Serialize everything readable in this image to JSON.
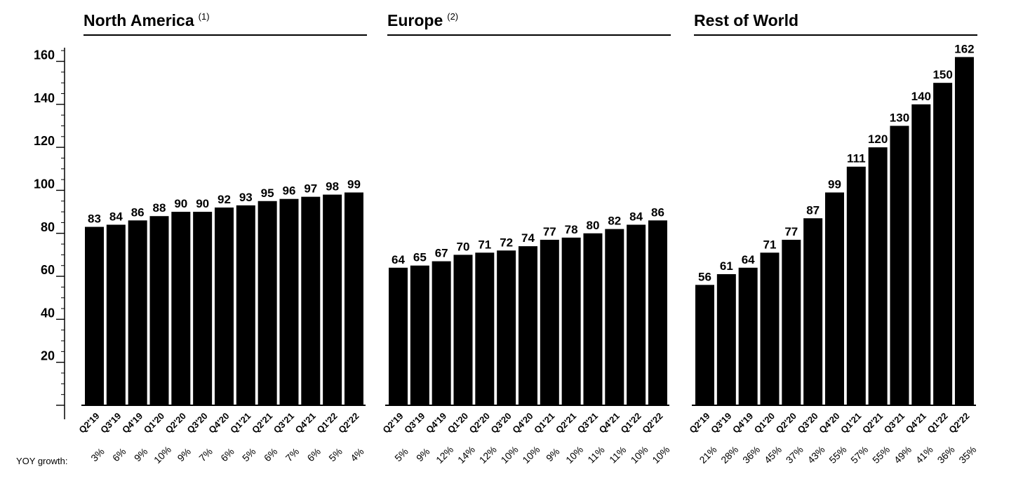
{
  "chart_data": {
    "type": "bar",
    "ylim": [
      0,
      170
    ],
    "yticks": [
      "20",
      "40",
      "60",
      "80",
      "100",
      "120",
      "140",
      "160"
    ],
    "categories": [
      "Q2'19",
      "Q3'19",
      "Q4'19",
      "Q1'20",
      "Q2'20",
      "Q3'20",
      "Q4'20",
      "Q1'21",
      "Q2'21",
      "Q3'21",
      "Q4'21",
      "Q1'22",
      "Q2'22"
    ],
    "growth_label": "YOY growth:",
    "panels": [
      {
        "title": "North America",
        "footnote": "(1)",
        "values": [
          83,
          84,
          86,
          88,
          90,
          90,
          92,
          93,
          95,
          96,
          97,
          98,
          99
        ],
        "growth": [
          "3%",
          "6%",
          "9%",
          "10%",
          "9%",
          "7%",
          "6%",
          "5%",
          "6%",
          "7%",
          "6%",
          "5%",
          "4%"
        ]
      },
      {
        "title": "Europe",
        "footnote": "(2)",
        "values": [
          64,
          65,
          67,
          70,
          71,
          72,
          74,
          77,
          78,
          80,
          82,
          84,
          86
        ],
        "growth": [
          "5%",
          "9%",
          "12%",
          "14%",
          "12%",
          "10%",
          "10%",
          "9%",
          "10%",
          "11%",
          "11%",
          "10%",
          "10%"
        ]
      },
      {
        "title": "Rest of World",
        "footnote": "",
        "values": [
          56,
          61,
          64,
          71,
          77,
          87,
          99,
          111,
          120,
          130,
          140,
          150,
          162
        ],
        "growth": [
          "21%",
          "28%",
          "36%",
          "45%",
          "37%",
          "43%",
          "55%",
          "57%",
          "55%",
          "49%",
          "41%",
          "36%",
          "35%"
        ]
      }
    ]
  }
}
